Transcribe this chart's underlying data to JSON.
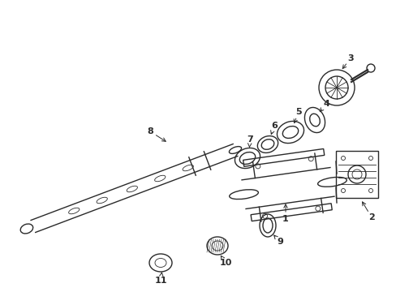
{
  "background_color": "#ffffff",
  "line_color": "#2a2a2a",
  "lw": 1.0,
  "tlw": 0.6
}
